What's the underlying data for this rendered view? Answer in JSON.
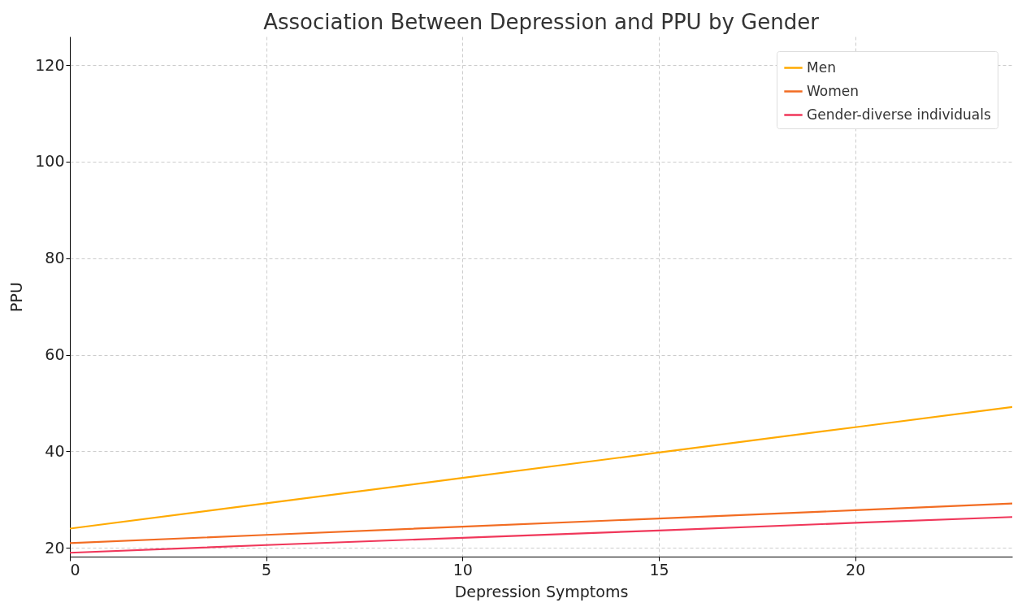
{
  "chart_data": {
    "type": "line",
    "title": "Association Between Depression and PPU by Gender",
    "xlabel": "Depression Symptoms",
    "ylabel": "PPU",
    "x": [
      0,
      5,
      10,
      15,
      20,
      24
    ],
    "series": [
      {
        "name": "Men",
        "color": "#ffaa00",
        "values": [
          24,
          29.25,
          34.5,
          39.75,
          45,
          49.2
        ]
      },
      {
        "name": "Women",
        "color": "#f26c22",
        "values": [
          21,
          22.7,
          24.4,
          26.1,
          27.8,
          29.2
        ]
      },
      {
        "name": "Gender-diverse individuals",
        "color": "#f0375a",
        "values": [
          19,
          20.6,
          22.1,
          23.6,
          25.2,
          26.4
        ]
      }
    ],
    "xlim": [
      0,
      24
    ],
    "ylim": [
      18.2,
      125.9
    ],
    "xticks": [
      0,
      5,
      10,
      15,
      20
    ],
    "yticks": [
      20,
      40,
      60,
      80,
      100,
      120
    ],
    "grid": true,
    "legend": "top right",
    "line_style": "solid",
    "marker": "none"
  }
}
